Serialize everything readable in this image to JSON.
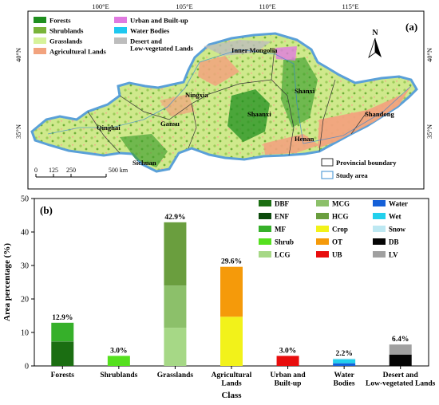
{
  "colors": {
    "forests": "#1f8f1f",
    "shrublands": "#79b43a",
    "grasslands": "#d6f29a",
    "agricultural": "#f2a37e",
    "urban": "#e07ae0",
    "water": "#1ec8f0",
    "desert": "#bdbdbd",
    "study_area_outline": "#5aa0d8",
    "DBF": "#1b6e12",
    "ENF": "#0c4a0c",
    "MF": "#36b02a",
    "Shrub": "#55e01e",
    "LCG": "#a6d886",
    "MCG": "#8cc06a",
    "HCG": "#6a9e3e",
    "Crop": "#f2f21a",
    "OT": "#f59a0a",
    "UB": "#e80d0d",
    "Water": "#1560d8",
    "Wet": "#22d0ec",
    "Snow": "#bde8f2",
    "DB": "#050505",
    "LV": "#a0a0a0"
  },
  "map": {
    "panel_label": "(a)",
    "lon_ticks": [
      "100°E",
      "105°E",
      "110°E",
      "115°E"
    ],
    "lat_ticks": [
      "40°N",
      "35°N"
    ],
    "north_label": "N",
    "legend": [
      {
        "key": "forests",
        "label": "Forests"
      },
      {
        "key": "shrublands",
        "label": "Shrublands"
      },
      {
        "key": "grasslands",
        "label": "Grasslands"
      },
      {
        "key": "agricultural",
        "label": "Agricultural Lands"
      },
      {
        "key": "urban",
        "label": "Urban and Built-up"
      },
      {
        "key": "water",
        "label": "Water Bodies"
      },
      {
        "key": "desert",
        "label": "Desert and\nLow-vegetated Lands"
      }
    ],
    "regions": [
      "Inner Mongolia",
      "Ningxia",
      "Shanxi",
      "Qinghai",
      "Gansu",
      "Shaanxi",
      "Shandong",
      "Henan",
      "Sichuan"
    ],
    "scale_ticks": [
      "0",
      "125",
      "250",
      "500 km"
    ],
    "boundary_legend": [
      "Provincial boundary",
      "Study area"
    ]
  },
  "chart_data": {
    "type": "bar",
    "stacked": true,
    "panel_label": "(b)",
    "xlabel": "Class",
    "ylabel": "Area percentage (%)",
    "ylim": [
      0,
      50
    ],
    "yticks": [
      0,
      10,
      20,
      30,
      40,
      50
    ],
    "categories": [
      "Forests",
      "Shrublands",
      "Grasslands",
      "Agricultural\nLands",
      "Urban and\nBuilt-up",
      "Water\nBodies",
      "Desert and\nLow-vegetated Lands"
    ],
    "totals": [
      "12.9%",
      "3.0%",
      "42.9%",
      "29.6%",
      "3.0%",
      "2.2%",
      "6.4%"
    ],
    "stacks": [
      [
        {
          "key": "DBF",
          "value": 7.2
        },
        {
          "key": "ENF",
          "value": 0.1
        },
        {
          "key": "MF",
          "value": 5.6
        }
      ],
      [
        {
          "key": "Shrub",
          "value": 3.0
        }
      ],
      [
        {
          "key": "LCG",
          "value": 11.4
        },
        {
          "key": "MCG",
          "value": 12.6
        },
        {
          "key": "HCG",
          "value": 18.9
        }
      ],
      [
        {
          "key": "Crop",
          "value": 14.7
        },
        {
          "key": "OT",
          "value": 14.9
        }
      ],
      [
        {
          "key": "UB",
          "value": 3.0
        }
      ],
      [
        {
          "key": "Water",
          "value": 0.8
        },
        {
          "key": "Wet",
          "value": 1.2
        },
        {
          "key": "Snow",
          "value": 0.2
        }
      ],
      [
        {
          "key": "DB",
          "value": 3.4
        },
        {
          "key": "LV",
          "value": 3.0
        }
      ]
    ],
    "legend": [
      [
        "DBF",
        "ENF",
        "MF",
        "Shrub",
        "LCG"
      ],
      [
        "MCG",
        "HCG",
        "Crop",
        "OT",
        "UB"
      ],
      [
        "Water",
        "Wet",
        "Snow",
        "DB",
        "LV"
      ]
    ],
    "grid": false
  }
}
